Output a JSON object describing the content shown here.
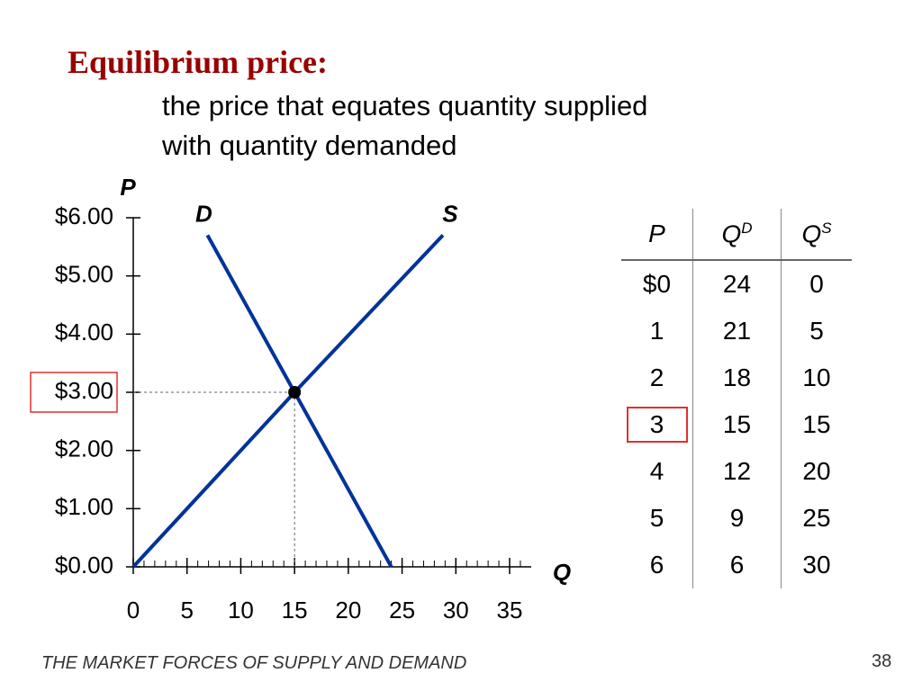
{
  "header": {
    "title": "Equilibrium price:",
    "subtitle_lines": [
      "the price that equates quantity supplied",
      "with quantity demanded"
    ]
  },
  "chart_data": {
    "type": "line",
    "ylabel": "P",
    "xlabel": "Q",
    "xlim": [
      0,
      35
    ],
    "xticks": [
      0,
      5,
      10,
      15,
      20,
      25,
      30,
      35
    ],
    "xminor_step": 1,
    "ylim": [
      0,
      6
    ],
    "yticks": [
      {
        "value": 0,
        "label": "$0.00"
      },
      {
        "value": 1,
        "label": "$1.00"
      },
      {
        "value": 2,
        "label": "$2.00"
      },
      {
        "value": 3,
        "label": "$3.00"
      },
      {
        "value": 4,
        "label": "$4.00"
      },
      {
        "value": 5,
        "label": "$5.00"
      },
      {
        "value": 6,
        "label": "$6.00"
      }
    ],
    "highlight_ytick": 3,
    "series": [
      {
        "name": "D",
        "color": "#003399",
        "x": [
          24,
          15,
          6.9
        ],
        "values": [
          0,
          3,
          5.7
        ]
      },
      {
        "name": "S",
        "color": "#003399",
        "x": [
          0,
          15,
          28.8
        ],
        "values": [
          0,
          3,
          5.7
        ]
      }
    ],
    "equilibrium": {
      "x": 15,
      "y": 3
    }
  },
  "table": {
    "header": [
      {
        "text": "P"
      },
      {
        "text": "Q",
        "sup": "D"
      },
      {
        "text": "Q",
        "sup": "S"
      }
    ],
    "rows": [
      [
        "$0",
        "24",
        "0"
      ],
      [
        "1",
        "21",
        "5"
      ],
      [
        "2",
        "18",
        "10"
      ],
      [
        "3",
        "15",
        "15"
      ],
      [
        "4",
        "12",
        "20"
      ],
      [
        "5",
        "9",
        "25"
      ],
      [
        "6",
        "6",
        "30"
      ]
    ],
    "highlight_cell": [
      3,
      0
    ]
  },
  "footer": {
    "text": "THE MARKET FORCES OF SUPPLY AND DEMAND",
    "page": "38"
  }
}
